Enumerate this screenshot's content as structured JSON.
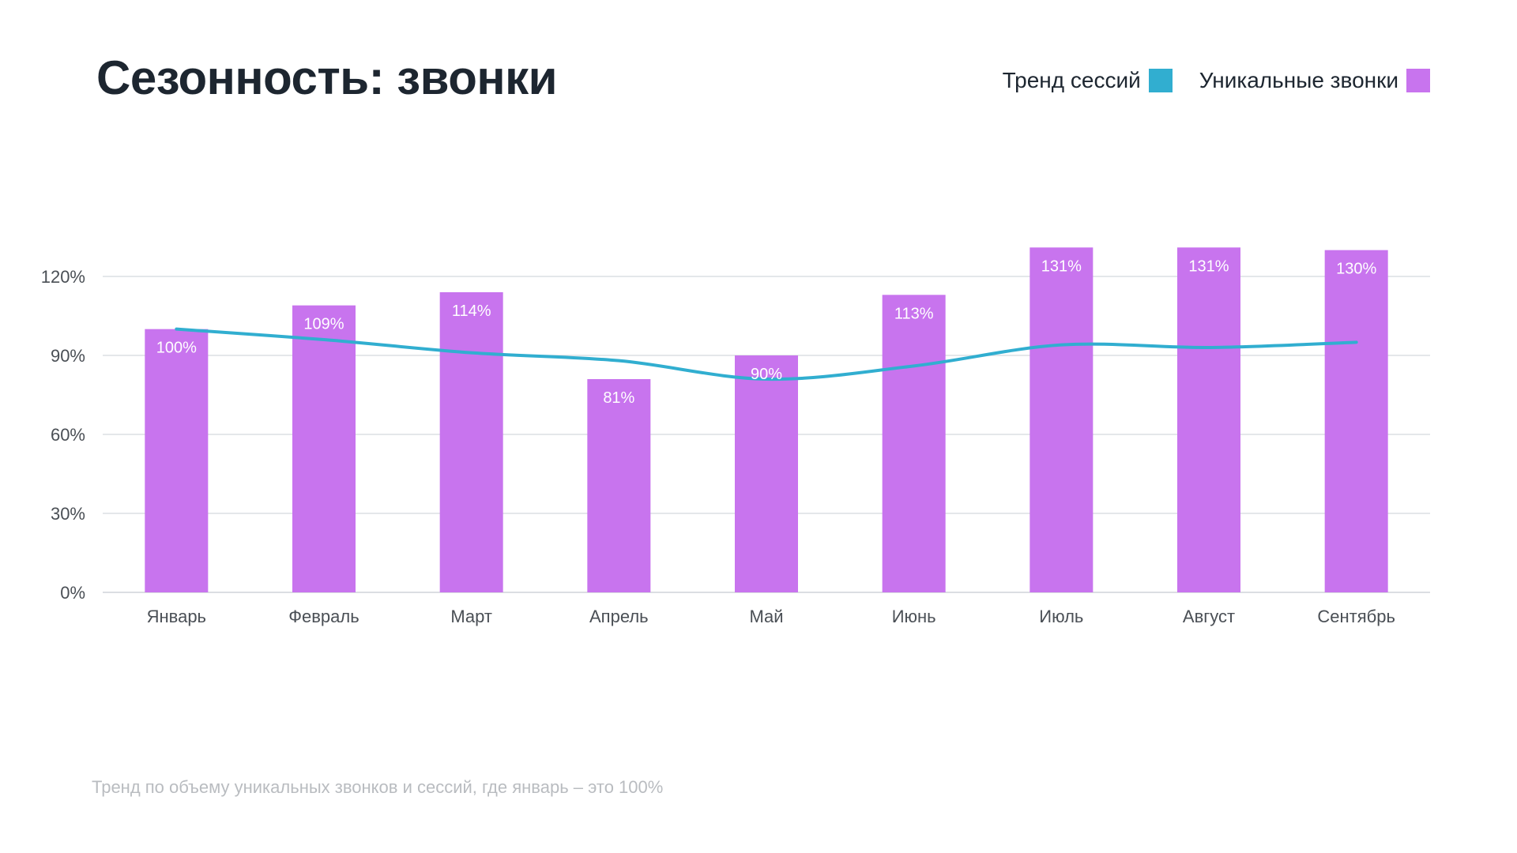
{
  "page": {
    "title": "Сезонность: звонки",
    "footnote": "Тренд по объему уникальных звонков и сессий, где январь – это 100%"
  },
  "legend": {
    "items": [
      {
        "label": "Тренд сессий",
        "color": "#31aed0"
      },
      {
        "label": "Уникальные звонки",
        "color": "#c874ee"
      }
    ]
  },
  "chart_data": {
    "type": "bar",
    "categories": [
      "Январь",
      "Февраль",
      "Март",
      "Апрель",
      "Май",
      "Июнь",
      "Июль",
      "Август",
      "Сентябрь"
    ],
    "series": [
      {
        "name": "Уникальные звонки",
        "kind": "bar",
        "color": "#c874ee",
        "values": [
          100,
          109,
          114,
          81,
          90,
          113,
          131,
          131,
          130
        ],
        "labels": [
          "100%",
          "109%",
          "114%",
          "81%",
          "90%",
          "113%",
          "131%",
          "131%",
          "130%"
        ]
      },
      {
        "name": "Тренд сессий",
        "kind": "line",
        "color": "#31aed0",
        "values": [
          100,
          96,
          91,
          88,
          81,
          86,
          94,
          93,
          95
        ]
      }
    ],
    "ylim": [
      0,
      120
    ],
    "yticks": [
      0,
      30,
      60,
      90,
      120
    ],
    "ytick_labels": [
      "0%",
      "30%",
      "60%",
      "90%",
      "120%"
    ],
    "grid": true,
    "legend_position": "top-right"
  }
}
